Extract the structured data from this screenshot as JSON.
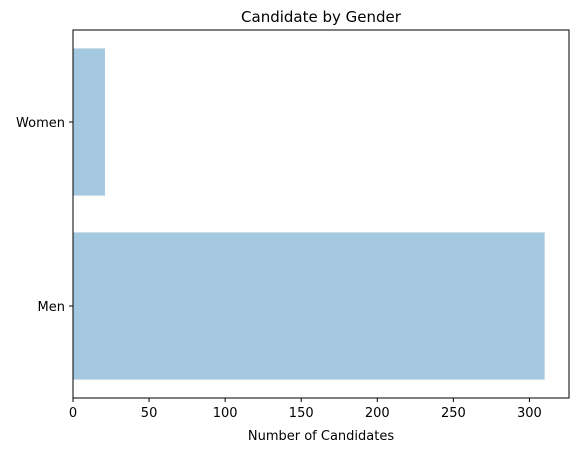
{
  "chart_data": {
    "type": "bar",
    "orientation": "horizontal",
    "title": "Candidate by Gender",
    "xlabel": "Number of Candidates",
    "ylabel": "",
    "categories": [
      "Men",
      "Women"
    ],
    "values": [
      310,
      21
    ],
    "xlim": [
      0,
      326
    ],
    "xticks": [
      0,
      50,
      100,
      150,
      200,
      250,
      300
    ],
    "bar_color": "#a5c8e1",
    "grid": false,
    "legend": "none"
  }
}
